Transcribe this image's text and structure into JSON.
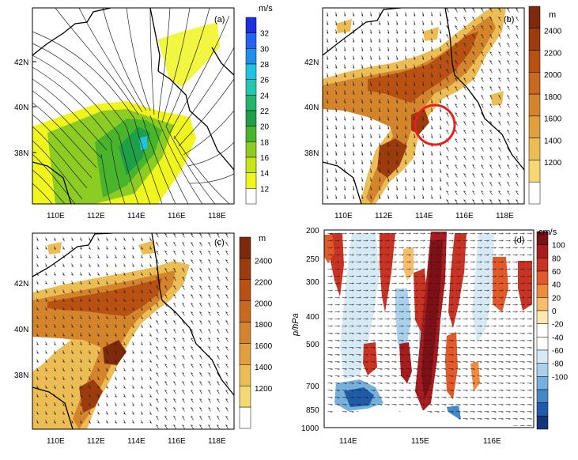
{
  "panels": {
    "a": {
      "tag": "(a)",
      "lat_labels": [
        "42N",
        "40N",
        "38N"
      ],
      "lon_labels": [
        "110E",
        "112E",
        "114E",
        "116E",
        "118E"
      ],
      "colorbar": {
        "unit": "m/s",
        "labels": [
          "32",
          "30",
          "28",
          "26",
          "24",
          "22",
          "20",
          "18",
          "16",
          "14",
          "12"
        ],
        "colors": [
          "#1a2fe0",
          "#2463f0",
          "#1f8fe8",
          "#21c3e3",
          "#23c8b0",
          "#22b56b",
          "#1fa046",
          "#48b52d",
          "#8dcc22",
          "#c8e41b",
          "#f0f51e",
          "#ffffff"
        ]
      }
    },
    "b": {
      "tag": "(b)",
      "lat_labels": [
        "42N",
        "40N",
        "38N"
      ],
      "lon_labels": [
        "110E",
        "112E",
        "114E",
        "116E",
        "118E"
      ],
      "colorbar": {
        "unit": "m",
        "labels": [
          "2400",
          "2200",
          "2000",
          "1800",
          "1600",
          "1400",
          "1200"
        ],
        "colors": [
          "#7c2a0b",
          "#9c3b0d",
          "#b85112",
          "#c8691d",
          "#d4852c",
          "#e0a03e",
          "#ecbd55",
          "#f5d874",
          "#ffffff"
        ]
      },
      "highlight": "red-circle"
    },
    "c": {
      "tag": "(c)",
      "lat_labels": [
        "42N",
        "40N",
        "38N"
      ],
      "lon_labels": [
        "110E",
        "112E",
        "114E",
        "116E",
        "118E"
      ],
      "colorbar": {
        "unit": "m",
        "labels": [
          "2400",
          "2200",
          "2000",
          "1800",
          "1600",
          "1400",
          "1200"
        ],
        "colors": [
          "#7c2a0b",
          "#9c3b0d",
          "#b85112",
          "#c8691d",
          "#d4852c",
          "#e0a03e",
          "#ecbd55",
          "#f5d874",
          "#ffffff"
        ]
      }
    },
    "d": {
      "tag": "(d)",
      "ylabel": "p/hPa",
      "p_labels": [
        "200",
        "250",
        "300",
        "400",
        "500",
        "700",
        "850",
        "1000"
      ],
      "lon_labels": [
        "114E",
        "115E",
        "116E"
      ],
      "colorbar": {
        "unit": "cm/s",
        "labels": [
          "100",
          "80",
          "60",
          "40",
          "20",
          "0",
          "-20",
          "-40",
          "-60",
          "-80",
          "-100"
        ],
        "colors": [
          "#7d0f16",
          "#a71c1f",
          "#c93323",
          "#e2592a",
          "#f08a3e",
          "#f7bd6b",
          "#fde8b2",
          "#ffffff",
          "#ffffff",
          "#d6eaf6",
          "#a9d1ec",
          "#75b1dc",
          "#4488c6",
          "#1f5ba8",
          "#16347a"
        ]
      }
    }
  }
}
